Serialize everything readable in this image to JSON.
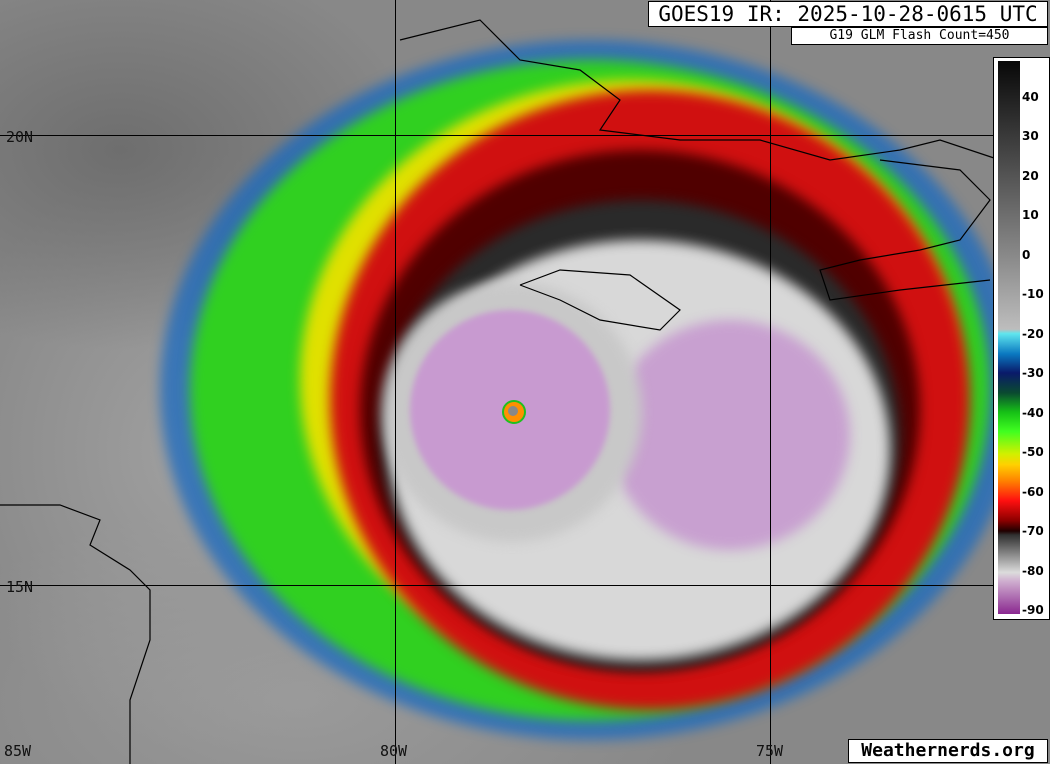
{
  "title": "GOES19 IR: 2025-10-28-0615 UTC",
  "glm": "G19 GLM Flash Count=450",
  "credit": "Weathernerds.org",
  "lat_labels": [
    "20N",
    "15N"
  ],
  "lon_labels": [
    "85W",
    "80W",
    "75W"
  ],
  "colorbar": {
    "units_label": "",
    "ticks": [
      "40",
      "30",
      "20",
      "10",
      "0",
      "-10",
      "-20",
      "-30",
      "-40",
      "-50",
      "-60",
      "-70",
      "-80",
      "-90"
    ],
    "tick_values": [
      40,
      30,
      20,
      10,
      0,
      -10,
      -20,
      -30,
      -40,
      -50,
      -60,
      -70,
      -80,
      -90
    ],
    "range": [
      49,
      -91
    ]
  },
  "colors": {
    "eye_purple": "#c89ad0",
    "red_band": "#e01010",
    "green_band": "#20d020",
    "cold_gray": "#d8d8d8"
  }
}
